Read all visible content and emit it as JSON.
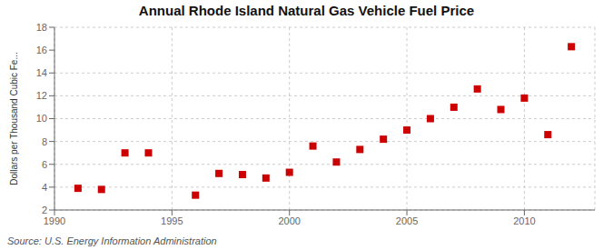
{
  "chart_data": {
    "type": "scatter",
    "title": "Annual Rhode Island Natural Gas Vehicle Fuel Price",
    "ylabel": "Dollars per Thousand Cubic Fe...",
    "annotation": "Source: U.S. Energy Information Administration",
    "x": [
      1991,
      1992,
      1993,
      1994,
      1996,
      1997,
      1998,
      1999,
      2000,
      2001,
      2002,
      2003,
      2004,
      2005,
      2006,
      2007,
      2008,
      2009,
      2010,
      2011,
      2012
    ],
    "values": [
      3.9,
      3.8,
      7.0,
      7.0,
      3.3,
      5.2,
      5.1,
      4.8,
      5.3,
      7.6,
      6.2,
      7.3,
      8.2,
      9.0,
      10.0,
      11.0,
      12.6,
      10.8,
      11.8,
      8.6,
      16.3
    ],
    "color": "#cc0000",
    "marker": "square",
    "xlim": [
      1990,
      2013
    ],
    "ylim": [
      2,
      18
    ],
    "xticks": [
      1990,
      1995,
      2000,
      2005,
      2010
    ],
    "yticks": [
      2,
      4,
      6,
      8,
      10,
      12,
      14,
      16,
      18
    ],
    "grid": true
  }
}
